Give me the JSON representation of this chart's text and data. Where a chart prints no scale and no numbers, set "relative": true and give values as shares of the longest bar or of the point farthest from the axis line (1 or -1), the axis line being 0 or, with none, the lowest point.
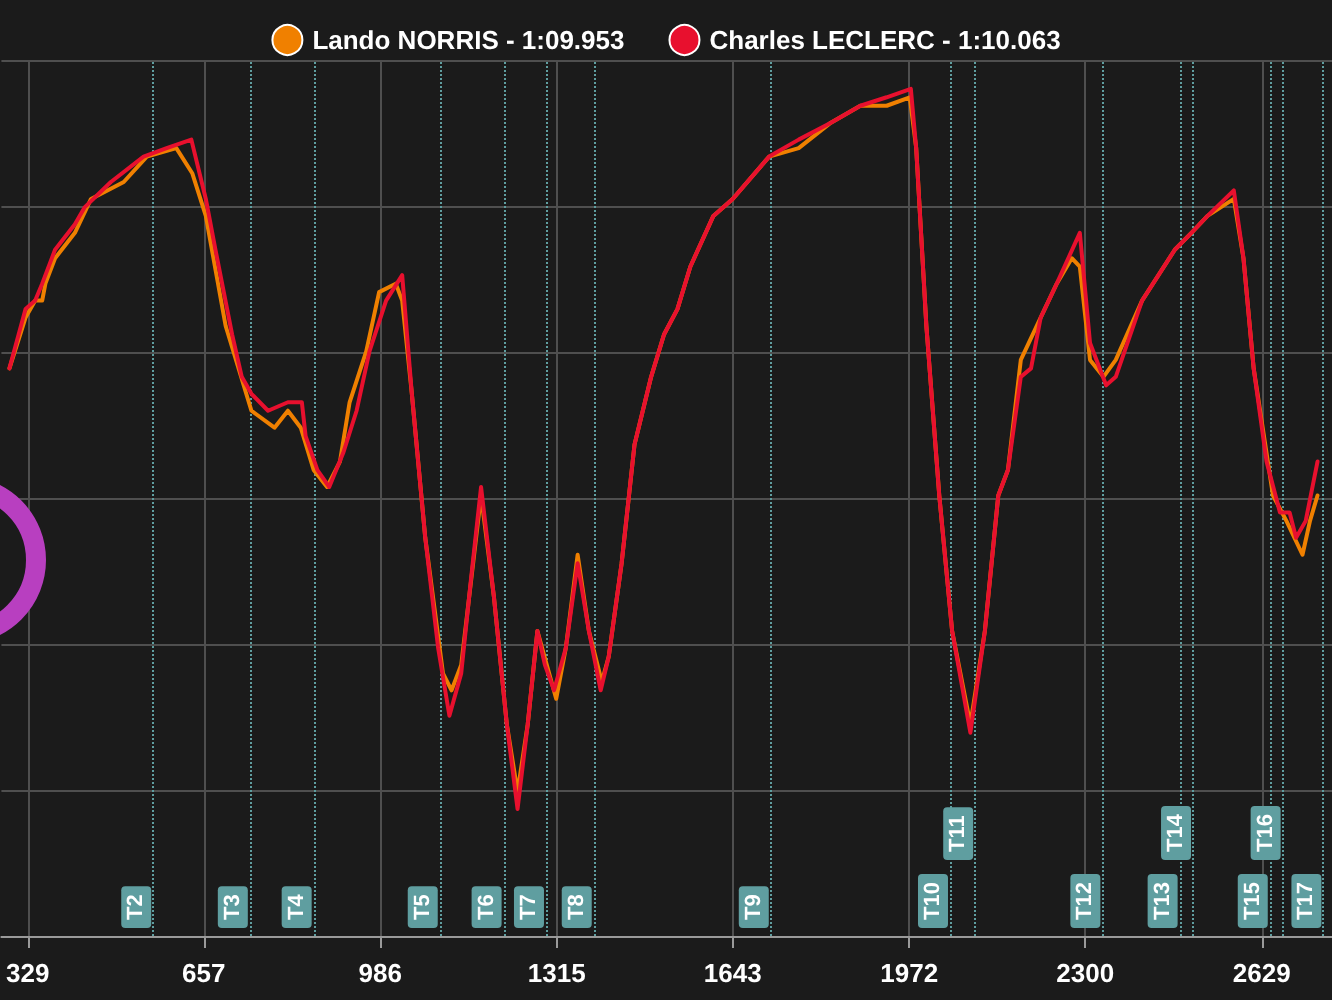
{
  "chart_data": {
    "type": "line",
    "relative": true,
    "legend": "top",
    "grid": true,
    "marker": "none",
    "line_style": "solid",
    "xlim": [
      280,
      2760
    ],
    "xticks": [
      329,
      657,
      986,
      1315,
      1643,
      1972,
      2300,
      2629
    ],
    "series": [
      {
        "name": "Lando NORRIS - 1:09.953",
        "color": "#f08000",
        "x": [
          295,
          325,
          343,
          356,
          362,
          380,
          417,
          447,
          508,
          551,
          606,
          636,
          661,
          698,
          746,
          789,
          814,
          838,
          862,
          887,
          911,
          929,
          960,
          984,
          1015,
          1027,
          1045,
          1070,
          1103,
          1119,
          1137,
          1174,
          1198,
          1222,
          1242,
          1261,
          1279,
          1314,
          1332,
          1354,
          1375,
          1399,
          1412,
          1436,
          1460,
          1491,
          1515,
          1540,
          1564,
          1607,
          1643,
          1711,
          1766,
          1826,
          1881,
          1930,
          1973,
          1985,
          2004,
          2028,
          2052,
          2086,
          2113,
          2138,
          2156,
          2180,
          2217,
          2247,
          2275,
          2290,
          2309,
          2334,
          2357,
          2406,
          2467,
          2498,
          2528,
          2577,
          2595,
          2614,
          2650,
          2675,
          2705,
          2719,
          2733
        ],
        "values": [
          0.67,
          0.73,
          0.75,
          0.75,
          0.77,
          0.8,
          0.83,
          0.87,
          0.89,
          0.92,
          0.93,
          0.9,
          0.85,
          0.72,
          0.62,
          0.6,
          0.62,
          0.6,
          0.55,
          0.53,
          0.56,
          0.63,
          0.69,
          0.76,
          0.77,
          0.75,
          0.64,
          0.47,
          0.31,
          0.29,
          0.32,
          0.52,
          0.4,
          0.25,
          0.17,
          0.25,
          0.36,
          0.28,
          0.34,
          0.45,
          0.36,
          0.3,
          0.33,
          0.44,
          0.58,
          0.66,
          0.71,
          0.74,
          0.79,
          0.85,
          0.87,
          0.92,
          0.93,
          0.96,
          0.98,
          0.98,
          0.99,
          0.93,
          0.72,
          0.52,
          0.36,
          0.25,
          0.36,
          0.52,
          0.55,
          0.68,
          0.73,
          0.77,
          0.8,
          0.79,
          0.68,
          0.66,
          0.68,
          0.75,
          0.81,
          0.83,
          0.85,
          0.87,
          0.8,
          0.67,
          0.52,
          0.49,
          0.45,
          0.49,
          0.52
        ]
      },
      {
        "name": "Charles LECLERC - 1:10.063",
        "color": "#e8102e",
        "x": [
          295,
          325,
          343,
          356,
          380,
          417,
          435,
          484,
          545,
          588,
          634,
          661,
          679,
          710,
          728,
          746,
          777,
          814,
          840,
          847,
          869,
          891,
          917,
          942,
          966,
          997,
          1027,
          1045,
          1070,
          1094,
          1115,
          1137,
          1155,
          1174,
          1198,
          1222,
          1242,
          1261,
          1279,
          1293,
          1310,
          1332,
          1354,
          1375,
          1397,
          1412,
          1436,
          1460,
          1491,
          1515,
          1540,
          1564,
          1607,
          1643,
          1711,
          1766,
          1826,
          1881,
          1930,
          1975,
          1985,
          2004,
          2028,
          2052,
          2086,
          2113,
          2138,
          2156,
          2180,
          2199,
          2217,
          2247,
          2290,
          2309,
          2339,
          2357,
          2406,
          2467,
          2498,
          2528,
          2577,
          2595,
          2614,
          2638,
          2663,
          2681,
          2693,
          2711,
          2733
        ],
        "values": [
          0.67,
          0.74,
          0.75,
          0.77,
          0.81,
          0.84,
          0.86,
          0.89,
          0.92,
          0.93,
          0.94,
          0.87,
          0.81,
          0.71,
          0.66,
          0.64,
          0.62,
          0.63,
          0.63,
          0.59,
          0.55,
          0.53,
          0.57,
          0.62,
          0.69,
          0.75,
          0.78,
          0.64,
          0.47,
          0.34,
          0.26,
          0.31,
          0.42,
          0.53,
          0.4,
          0.25,
          0.15,
          0.25,
          0.36,
          0.32,
          0.29,
          0.34,
          0.44,
          0.36,
          0.29,
          0.33,
          0.44,
          0.58,
          0.66,
          0.71,
          0.74,
          0.79,
          0.85,
          0.87,
          0.92,
          0.94,
          0.96,
          0.98,
          0.99,
          1,
          0.93,
          0.72,
          0.52,
          0.36,
          0.24,
          0.36,
          0.52,
          0.55,
          0.66,
          0.67,
          0.73,
          0.77,
          0.83,
          0.7,
          0.65,
          0.66,
          0.75,
          0.81,
          0.83,
          0.85,
          0.88,
          0.8,
          0.67,
          0.56,
          0.5,
          0.5,
          0.47,
          0.49,
          0.56
        ]
      }
    ],
    "ref_lines": [
      {
        "axis": "x",
        "value": 563,
        "label": "T2",
        "color": "#5f9ea0",
        "line_style": "dotted"
      },
      {
        "axis": "x",
        "value": 743,
        "label": "T3",
        "color": "#5f9ea0",
        "line_style": "dotted"
      },
      {
        "axis": "x",
        "value": 862,
        "label": "T4",
        "color": "#5f9ea0",
        "line_style": "dotted"
      },
      {
        "axis": "x",
        "value": 1097,
        "label": "T5",
        "color": "#5f9ea0",
        "line_style": "dotted"
      },
      {
        "axis": "x",
        "value": 1216,
        "label": "T6",
        "color": "#5f9ea0",
        "line_style": "dotted"
      },
      {
        "axis": "x",
        "value": 1295,
        "label": "T7",
        "color": "#5f9ea0",
        "line_style": "dotted"
      },
      {
        "axis": "x",
        "value": 1384,
        "label": "T8",
        "color": "#5f9ea0",
        "line_style": "dotted"
      },
      {
        "axis": "x",
        "value": 1714,
        "label": "T9",
        "color": "#5f9ea0",
        "line_style": "dotted"
      },
      {
        "axis": "x",
        "value": 2048,
        "label": "T10",
        "color": "#5f9ea0",
        "line_style": "dotted"
      },
      {
        "axis": "x",
        "value": 2095,
        "label": "T11",
        "color": "#5f9ea0",
        "line_style": "dotted"
      },
      {
        "axis": "x",
        "value": 2332,
        "label": "T12",
        "color": "#5f9ea0",
        "line_style": "dotted"
      },
      {
        "axis": "x",
        "value": 2476,
        "label": "T13",
        "color": "#5f9ea0",
        "line_style": "dotted"
      },
      {
        "axis": "x",
        "value": 2501,
        "label": "T14",
        "color": "#5f9ea0",
        "line_style": "dotted"
      },
      {
        "axis": "x",
        "value": 2644,
        "label": "T15",
        "color": "#5f9ea0",
        "line_style": "dotted"
      },
      {
        "axis": "x",
        "value": 2668,
        "label": "T16",
        "color": "#5f9ea0",
        "line_style": "dotted"
      },
      {
        "axis": "x",
        "value": 2744,
        "label": "T17",
        "color": "#5f9ea0",
        "line_style": "dotted"
      }
    ]
  }
}
